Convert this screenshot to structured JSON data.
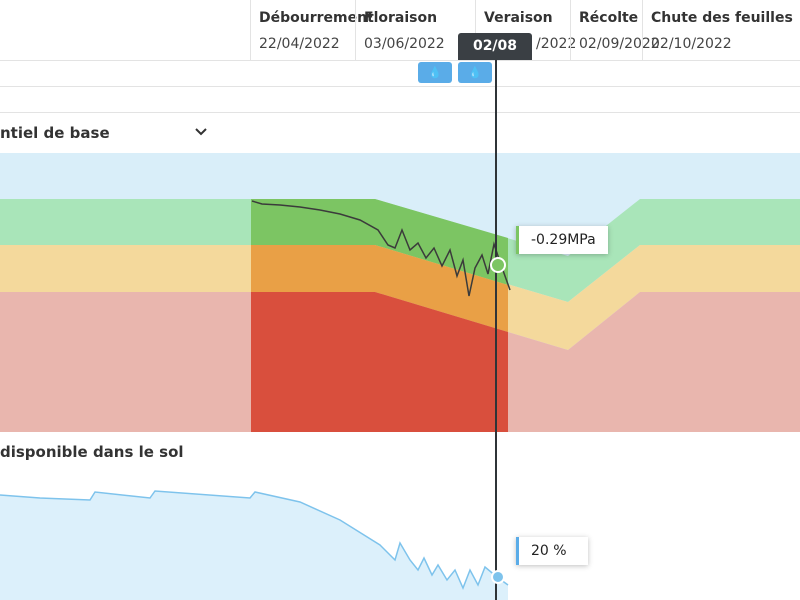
{
  "header": {
    "phases": [
      {
        "name": "Débourrement",
        "date": "22/04/2022"
      },
      {
        "name": "Floraison",
        "date": "03/06/2022"
      },
      {
        "name": "Veraison",
        "date": "/2022"
      },
      {
        "name": "Récolte",
        "date": "02/09/2022"
      },
      {
        "name": "Chute des feuilles",
        "date": "02/10/2022"
      }
    ]
  },
  "cursor": {
    "date": "02/08"
  },
  "sections": [
    {
      "title": "ntiel de base",
      "tooltip": "-0.29MPa"
    },
    {
      "title": "disponible dans le sol",
      "tooltip": "20 %"
    }
  ]
}
